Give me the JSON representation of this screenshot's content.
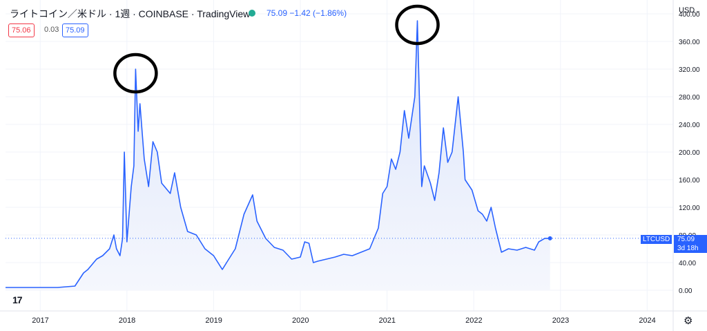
{
  "header": {
    "title": "ライトコイン／米ドル · 1週 · COINBASE · TradingView",
    "quote": "75.09  −1.42 (−1.86%)",
    "sell_price": "75.06",
    "spread": "0.03",
    "buy_price": "75.09",
    "currency": "USD"
  },
  "price_tag": {
    "symbol": "LTCUSD",
    "price": "75.09",
    "countdown": "3d 18h"
  },
  "colors": {
    "line": "#2962ff",
    "area_top": "#dce5fb",
    "area_bottom": "#f5f7fd",
    "marker_circle": "#000000"
  },
  "icons": {
    "logo": "tradingview-logo-icon",
    "settings": "gear-icon"
  },
  "logo_text": "17",
  "chart_data": {
    "type": "area",
    "title": "",
    "xlabel": "",
    "ylabel": "",
    "x_ticks": [
      "2017",
      "2018",
      "2019",
      "2020",
      "2021",
      "2022",
      "2023",
      "2024"
    ],
    "y_ticks": [
      "400.00",
      "360.00",
      "320.00",
      "280.00",
      "240.00",
      "200.00",
      "160.00",
      "120.00",
      "80.00",
      "40.00",
      "0.00"
    ],
    "ylim": [
      -30,
      420
    ],
    "xlim": [
      2016.6,
      2024.3
    ],
    "grid": true,
    "last_value": 75.09,
    "series": [
      {
        "values": [
          [
            2016.6,
            4
          ],
          [
            2016.8,
            4
          ],
          [
            2017.0,
            4
          ],
          [
            2017.2,
            4
          ],
          [
            2017.4,
            6
          ],
          [
            2017.5,
            25
          ],
          [
            2017.55,
            30
          ],
          [
            2017.65,
            45
          ],
          [
            2017.72,
            50
          ],
          [
            2017.8,
            60
          ],
          [
            2017.85,
            80
          ],
          [
            2017.88,
            60
          ],
          [
            2017.92,
            50
          ],
          [
            2017.95,
            75
          ],
          [
            2018.0,
            70
          ],
          [
            2018.05,
            150
          ],
          [
            2018.08,
            180
          ],
          [
            2017.97,
            200
          ],
          [
            2018.1,
            320
          ],
          [
            2018.13,
            230
          ],
          [
            2018.15,
            270
          ],
          [
            2018.2,
            190
          ],
          [
            2018.25,
            150
          ],
          [
            2018.3,
            215
          ],
          [
            2018.35,
            200
          ],
          [
            2018.4,
            155
          ],
          [
            2018.5,
            140
          ],
          [
            2018.55,
            170
          ],
          [
            2018.62,
            120
          ],
          [
            2018.7,
            85
          ],
          [
            2018.8,
            80
          ],
          [
            2018.9,
            60
          ],
          [
            2019.0,
            50
          ],
          [
            2019.1,
            30
          ],
          [
            2019.15,
            40
          ],
          [
            2019.25,
            60
          ],
          [
            2019.35,
            110
          ],
          [
            2019.45,
            138
          ],
          [
            2019.5,
            100
          ],
          [
            2019.6,
            75
          ],
          [
            2019.7,
            62
          ],
          [
            2019.8,
            58
          ],
          [
            2019.9,
            45
          ],
          [
            2020.0,
            48
          ],
          [
            2020.05,
            70
          ],
          [
            2020.1,
            68
          ],
          [
            2020.15,
            40
          ],
          [
            2020.2,
            42
          ],
          [
            2020.3,
            45
          ],
          [
            2020.4,
            48
          ],
          [
            2020.5,
            52
          ],
          [
            2020.6,
            50
          ],
          [
            2020.7,
            55
          ],
          [
            2020.8,
            60
          ],
          [
            2020.9,
            90
          ],
          [
            2020.95,
            140
          ],
          [
            2021.0,
            150
          ],
          [
            2021.05,
            190
          ],
          [
            2021.1,
            175
          ],
          [
            2021.15,
            200
          ],
          [
            2021.2,
            260
          ],
          [
            2021.25,
            220
          ],
          [
            2021.32,
            280
          ],
          [
            2021.35,
            390
          ],
          [
            2021.4,
            150
          ],
          [
            2021.43,
            180
          ],
          [
            2021.5,
            155
          ],
          [
            2021.55,
            130
          ],
          [
            2021.6,
            170
          ],
          [
            2021.65,
            235
          ],
          [
            2021.7,
            185
          ],
          [
            2021.75,
            200
          ],
          [
            2021.82,
            280
          ],
          [
            2021.88,
            200
          ],
          [
            2021.9,
            160
          ],
          [
            2021.98,
            145
          ],
          [
            2022.05,
            115
          ],
          [
            2022.1,
            110
          ],
          [
            2022.15,
            100
          ],
          [
            2022.2,
            120
          ],
          [
            2022.25,
            90
          ],
          [
            2022.32,
            55
          ],
          [
            2022.4,
            60
          ],
          [
            2022.5,
            58
          ],
          [
            2022.6,
            62
          ],
          [
            2022.7,
            58
          ],
          [
            2022.75,
            70
          ],
          [
            2022.82,
            75.09
          ],
          [
            2022.88,
            75.09
          ]
        ]
      }
    ],
    "highlights": [
      {
        "x": 2018.1,
        "y": 320
      },
      {
        "x": 2021.35,
        "y": 390
      }
    ]
  }
}
